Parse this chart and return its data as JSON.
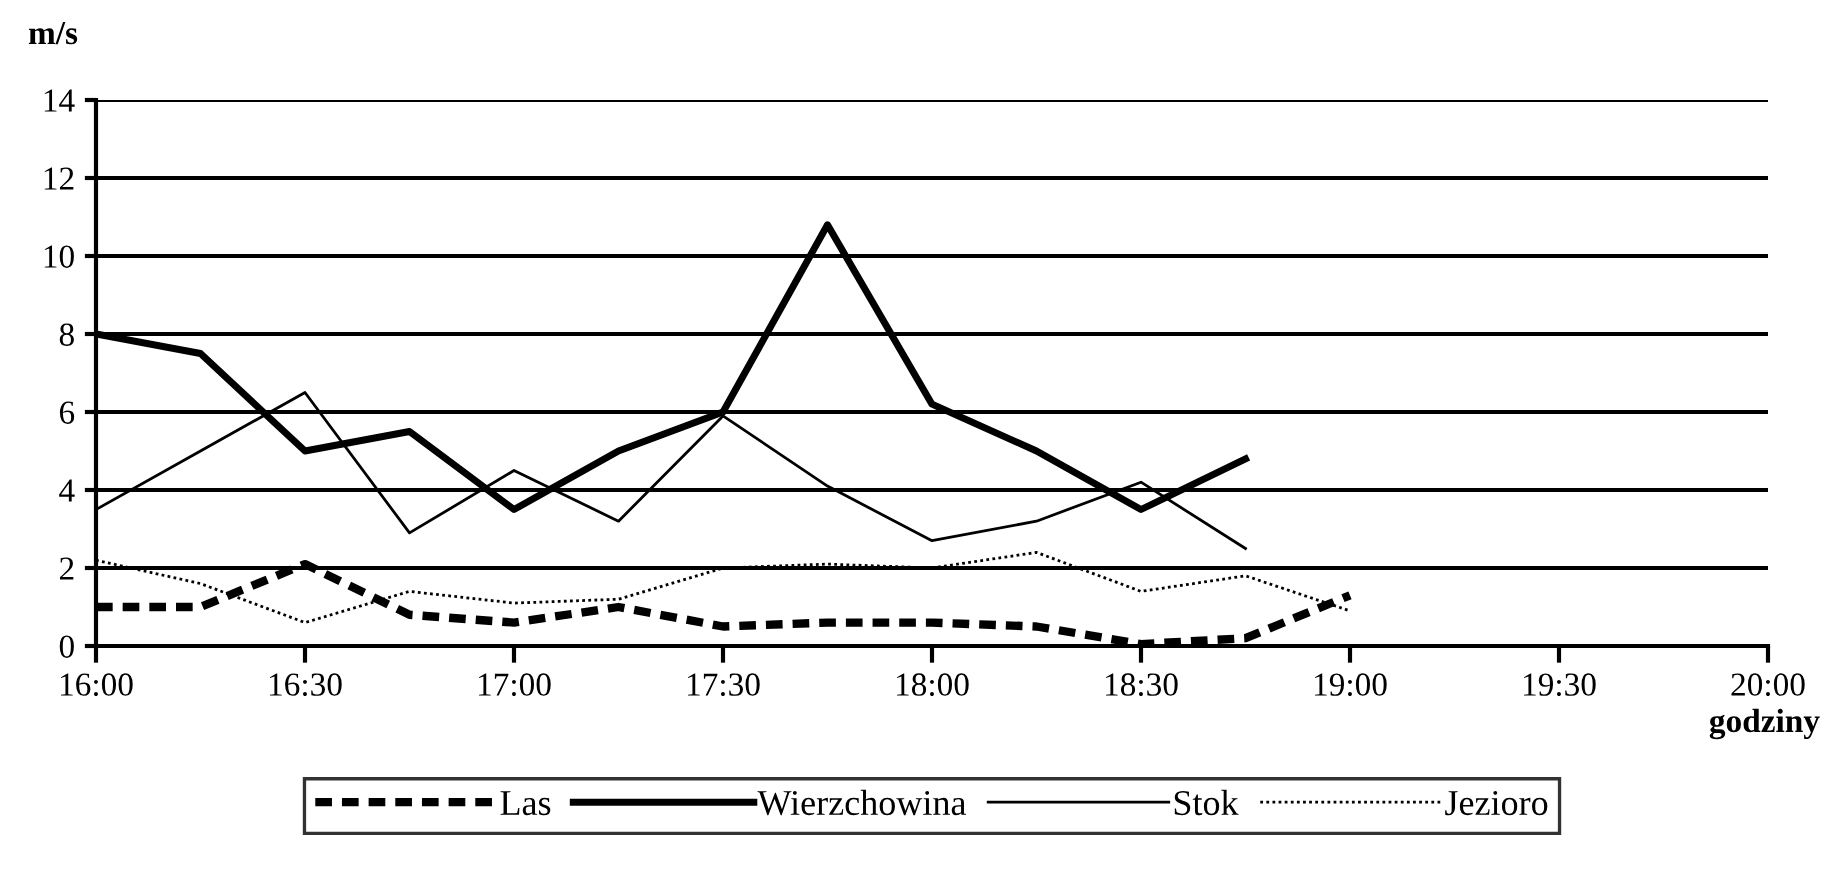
{
  "chart_data": {
    "type": "line",
    "ylabel": "m/s",
    "xlabel": "godziny",
    "x": [
      16,
      16.25,
      16.5,
      16.75,
      17,
      17.25,
      17.5,
      17.75,
      18,
      18.25,
      18.5,
      18.75,
      19
    ],
    "series": [
      {
        "name": "Las",
        "color": "#000000",
        "line_style": "dashed",
        "values": [
          1,
          1,
          2.1,
          0.8,
          0.6,
          1,
          0.5,
          0.6,
          0.6,
          0.5,
          0.05,
          0.2,
          1.3
        ]
      },
      {
        "name": "Wierzchowina",
        "color": "#000000",
        "line_style": "solid",
        "values": [
          8,
          7.5,
          5,
          5.5,
          3.5,
          5,
          6,
          10.8,
          6.2,
          5,
          3.5,
          4.8,
          null
        ]
      },
      {
        "name": "Stok",
        "color": "#000000",
        "line_style": "solid",
        "values": [
          3.5,
          5,
          6.5,
          2.9,
          4.5,
          3.2,
          5.9,
          4.1,
          2.7,
          3.2,
          4.2,
          2.5,
          null
        ]
      },
      {
        "name": "Jezioro",
        "color": "#000000",
        "line_style": "dotted",
        "values": [
          2.2,
          1.6,
          0.6,
          1.4,
          1.1,
          1.2,
          2.0,
          2.1,
          2.0,
          2.4,
          1.4,
          1.8,
          0.9
        ]
      }
    ],
    "xlim": [
      16,
      20
    ],
    "xticks": [
      {
        "value": 16,
        "label": "16:00"
      },
      {
        "value": 16.5,
        "label": "16:30"
      },
      {
        "value": 17,
        "label": "17:00"
      },
      {
        "value": 17.5,
        "label": "17:30"
      },
      {
        "value": 18,
        "label": "18:00"
      },
      {
        "value": 18.5,
        "label": "18:30"
      },
      {
        "value": 19,
        "label": "19:00"
      },
      {
        "value": 19.5,
        "label": "19:30"
      },
      {
        "value": 20,
        "label": "20:00"
      }
    ],
    "ylim": [
      0,
      14
    ],
    "yticks": [
      0,
      2,
      4,
      6,
      8,
      10,
      12,
      14
    ],
    "grid": "y",
    "legend": "bottom",
    "marker": "none"
  }
}
